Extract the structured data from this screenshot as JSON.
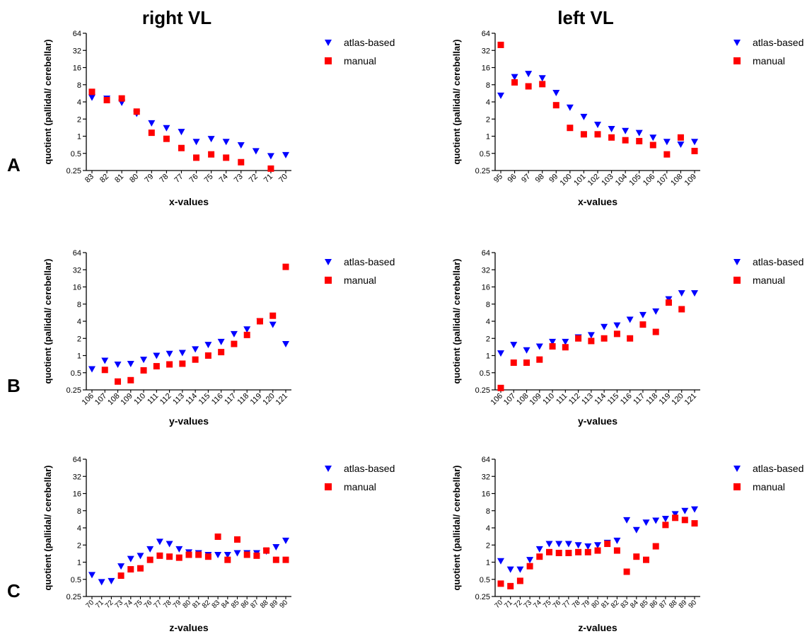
{
  "columns": [
    "right VL",
    "left VL"
  ],
  "rows": [
    "A",
    "B",
    "C"
  ],
  "colors": {
    "atlas": "#0000ff",
    "manual": "#ff0000",
    "axis": "#000000"
  },
  "chart_data": [
    {
      "type": "scatter",
      "panel": "A",
      "column": "right VL",
      "xlabel": "x-values",
      "ylabel": "quotient (pallidal/ cerebellar)",
      "yscale": "log2",
      "ylim": [
        0.25,
        64
      ],
      "yticks": [
        "0.25",
        "0.5",
        "1",
        "2",
        "4",
        "8",
        "16",
        "32",
        "64"
      ],
      "categories": [
        "83",
        "82",
        "81",
        "80",
        "79",
        "78",
        "77",
        "76",
        "75",
        "74",
        "73",
        "72",
        "71",
        "70"
      ],
      "series": [
        {
          "name": "atlas-based",
          "marker": "triangle-down",
          "values": [
            4.8,
            4.6,
            3.9,
            2.5,
            1.7,
            1.4,
            1.2,
            0.8,
            0.9,
            0.8,
            0.7,
            0.55,
            0.45,
            0.47
          ]
        },
        {
          "name": "manual",
          "marker": "square",
          "values": [
            6.0,
            4.3,
            4.6,
            2.7,
            1.15,
            0.9,
            0.62,
            0.42,
            0.48,
            0.42,
            0.35,
            null,
            0.27,
            null
          ]
        }
      ]
    },
    {
      "type": "scatter",
      "panel": "A",
      "column": "left VL",
      "xlabel": "x-values",
      "ylabel": "quotient (pallidal/ cerebellar)",
      "yscale": "log2",
      "ylim": [
        0.25,
        64
      ],
      "yticks": [
        "0.25",
        "0.5",
        "1",
        "2",
        "4",
        "8",
        "16",
        "32",
        "64"
      ],
      "categories": [
        "95",
        "96",
        "97",
        "98",
        "99",
        "100",
        "101",
        "102",
        "103",
        "104",
        "105",
        "106",
        "107",
        "108",
        "109"
      ],
      "series": [
        {
          "name": "atlas-based",
          "marker": "triangle-down",
          "values": [
            5.2,
            11.0,
            12.5,
            10.5,
            5.8,
            3.2,
            2.2,
            1.6,
            1.35,
            1.25,
            1.15,
            0.95,
            0.8,
            0.72,
            0.8
          ]
        },
        {
          "name": "manual",
          "marker": "square",
          "values": [
            40,
            8.8,
            7.5,
            8.2,
            3.5,
            1.4,
            1.08,
            1.08,
            0.95,
            0.85,
            0.82,
            0.7,
            0.48,
            0.95,
            0.55
          ]
        }
      ]
    },
    {
      "type": "scatter",
      "panel": "B",
      "column": "right VL",
      "xlabel": "y-values",
      "ylabel": "quotient (pallidal/ cerebellar)",
      "yscale": "log2",
      "ylim": [
        0.25,
        64
      ],
      "yticks": [
        "0.25",
        "0.5",
        "1",
        "2",
        "4",
        "8",
        "16",
        "32",
        "64"
      ],
      "categories": [
        "106",
        "107",
        "108",
        "109",
        "110",
        "111",
        "112",
        "113",
        "114",
        "115",
        "116",
        "117",
        "118",
        "119",
        "120",
        "121"
      ],
      "series": [
        {
          "name": "atlas-based",
          "marker": "triangle-down",
          "values": [
            0.58,
            0.82,
            0.7,
            0.72,
            0.85,
            1.0,
            1.08,
            1.12,
            1.3,
            1.55,
            1.75,
            2.4,
            2.9,
            4.0,
            3.5,
            1.6
          ]
        },
        {
          "name": "manual",
          "marker": "square",
          "values": [
            null,
            0.56,
            0.35,
            0.37,
            0.55,
            0.65,
            0.7,
            0.72,
            0.85,
            1.0,
            1.15,
            1.6,
            2.3,
            4.0,
            5.0,
            36
          ]
        }
      ]
    },
    {
      "type": "scatter",
      "panel": "B",
      "column": "left VL",
      "xlabel": "y-values",
      "ylabel": "quotient (pallidal/ cerebellar)",
      "yscale": "log2",
      "ylim": [
        0.25,
        64
      ],
      "yticks": [
        "0.25",
        "0.5",
        "1",
        "2",
        "4",
        "8",
        "16",
        "32",
        "64"
      ],
      "categories": [
        "106",
        "107",
        "108",
        "109",
        "110",
        "111",
        "112",
        "113",
        "114",
        "115",
        "116",
        "117",
        "118",
        "119",
        "120",
        "121"
      ],
      "series": [
        {
          "name": "atlas-based",
          "marker": "triangle-down",
          "values": [
            1.1,
            1.55,
            1.25,
            1.45,
            1.75,
            1.75,
            2.1,
            2.3,
            3.2,
            3.4,
            4.3,
            5.2,
            6.0,
            9.8,
            12.5,
            12.5
          ]
        },
        {
          "name": "manual",
          "marker": "square",
          "values": [
            0.27,
            0.75,
            0.75,
            0.85,
            1.45,
            1.4,
            2.0,
            1.8,
            2.0,
            2.4,
            2.0,
            3.5,
            2.6,
            8.5,
            6.5,
            null
          ]
        }
      ]
    },
    {
      "type": "scatter",
      "panel": "C",
      "column": "right VL",
      "xlabel": "z-values",
      "ylabel": "quotient (pallidal/ cerebellar)",
      "yscale": "log2",
      "ylim": [
        0.25,
        64
      ],
      "yticks": [
        "0.25",
        "0.5",
        "1",
        "2",
        "4",
        "8",
        "16",
        "32",
        "64"
      ],
      "categories": [
        "70",
        "71",
        "72",
        "73",
        "74",
        "75",
        "76",
        "77",
        "78",
        "79",
        "80",
        "81",
        "82",
        "83",
        "84",
        "85",
        "86",
        "87",
        "88",
        "89",
        "90"
      ],
      "series": [
        {
          "name": "atlas-based",
          "marker": "triangle-down",
          "values": [
            0.6,
            0.45,
            0.47,
            0.85,
            1.15,
            1.3,
            1.7,
            2.3,
            2.1,
            1.7,
            1.5,
            1.45,
            1.35,
            1.35,
            1.35,
            1.45,
            1.45,
            1.45,
            1.55,
            1.85,
            2.4
          ]
        },
        {
          "name": "manual",
          "marker": "square",
          "values": [
            null,
            null,
            null,
            0.58,
            0.75,
            0.78,
            1.1,
            1.3,
            1.25,
            1.2,
            1.35,
            1.35,
            1.25,
            2.8,
            1.1,
            2.5,
            1.35,
            1.3,
            1.6,
            1.1,
            1.1
          ]
        }
      ]
    },
    {
      "type": "scatter",
      "panel": "C",
      "column": "left VL",
      "xlabel": "z-values",
      "ylabel": "quotient (pallidal/ cerebellar)",
      "yscale": "log2",
      "ylim": [
        0.25,
        64
      ],
      "yticks": [
        "0.25",
        "0.5",
        "1",
        "2",
        "4",
        "8",
        "16",
        "32",
        "64"
      ],
      "categories": [
        "70",
        "71",
        "72",
        "73",
        "74",
        "75",
        "76",
        "77",
        "78",
        "79",
        "80",
        "81",
        "82",
        "83",
        "84",
        "85",
        "86",
        "87",
        "88",
        "89",
        "90"
      ],
      "series": [
        {
          "name": "atlas-based",
          "marker": "triangle-down",
          "values": [
            1.05,
            0.75,
            0.75,
            1.1,
            1.7,
            2.1,
            2.1,
            2.1,
            2.0,
            1.9,
            2.0,
            2.2,
            2.4,
            5.5,
            3.7,
            5.0,
            5.4,
            5.8,
            7.0,
            8.0,
            8.5
          ]
        },
        {
          "name": "manual",
          "marker": "square",
          "values": [
            0.42,
            0.38,
            0.47,
            0.85,
            1.25,
            1.5,
            1.45,
            1.45,
            1.5,
            1.5,
            1.6,
            2.1,
            1.6,
            0.68,
            1.25,
            1.1,
            1.9,
            4.5,
            6.0,
            5.5,
            4.8
          ]
        }
      ]
    }
  ]
}
